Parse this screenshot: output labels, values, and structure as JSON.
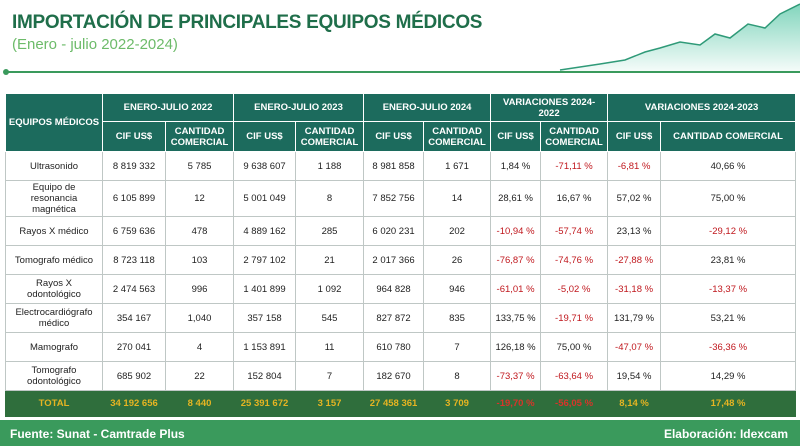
{
  "header": {
    "title": "IMPORTACIÓN DE PRINCIPALES EQUIPOS MÉDICOS",
    "subtitle": "(Enero - julio 2022-2024)"
  },
  "table": {
    "groups": [
      "EQUIPOS MÉDICOS",
      "ENERO-JULIO 2022",
      "ENERO-JULIO 2023",
      "ENERO-JULIO 2024",
      "VARIACIONES 2024-2022",
      "VARIACIONES 2024-2023"
    ],
    "subheaders": [
      "CIF US$",
      "CANTIDAD COMERCIAL",
      "CIF US$",
      "CANTIDAD COMERCIAL",
      "CIF US$",
      "CANTIDAD COMERCIAL",
      "CIF US$",
      "CANTIDAD COMERCIAL",
      "CIF US$",
      "CANTIDAD COMERCIAL"
    ],
    "rows": [
      [
        "Ultrasonido",
        "8 819 332",
        "5 785",
        "9 638 607",
        "1 188",
        "8 981 858",
        "1 671",
        "1,84 %",
        "-71,11 %",
        "-6,81 %",
        "40,66 %"
      ],
      [
        "Equipo de resonancia magnética",
        "6 105 899",
        "12",
        "5 001 049",
        "8",
        "7 852 756",
        "14",
        "28,61 %",
        "16,67 %",
        "57,02 %",
        "75,00 %"
      ],
      [
        "Rayos X médico",
        "6 759 636",
        "478",
        "4 889 162",
        "285",
        "6 020 231",
        "202",
        "-10,94 %",
        "-57,74 %",
        "23,13 %",
        "-29,12 %"
      ],
      [
        "Tomografo médico",
        "8 723 118",
        "103",
        "2 797 102",
        "21",
        "2 017 366",
        "26",
        "-76,87 %",
        "-74,76 %",
        "-27,88 %",
        "23,81 %"
      ],
      [
        "Rayos X odontológico",
        "2 474 563",
        "996",
        "1 401 899",
        "1 092",
        "964 828",
        "946",
        "-61,01 %",
        "-5,02 %",
        "-31,18 %",
        "-13,37 %"
      ],
      [
        "Electrocardiógrafo médico",
        "354 167",
        "1,040",
        "357 158",
        "545",
        "827 872",
        "835",
        "133,75 %",
        "-19,71 %",
        "131,79 %",
        "53,21 %"
      ],
      [
        "Mamografo",
        "270 041",
        "4",
        "1 153 891",
        "11",
        "610 780",
        "7",
        "126,18 %",
        "75,00 %",
        "-47,07 %",
        "-36,36 %"
      ],
      [
        "Tomografo odontológico",
        "685 902",
        "22",
        "152 804",
        "7",
        "182 670",
        "8",
        "-73,37 %",
        "-63,64 %",
        "19,54 %",
        "14,29 %"
      ]
    ],
    "total": [
      "TOTAL",
      "34 192 656",
      "8 440",
      "25 391 672",
      "3 157",
      "27 458 361",
      "3 709",
      "-19,70 %",
      "-56,05 %",
      "8,14 %",
      "17,48 %"
    ]
  },
  "footer": {
    "source": "Fuente: Sunat - Camtrade Plus",
    "credit": "Elaboración: Idexcam"
  }
}
